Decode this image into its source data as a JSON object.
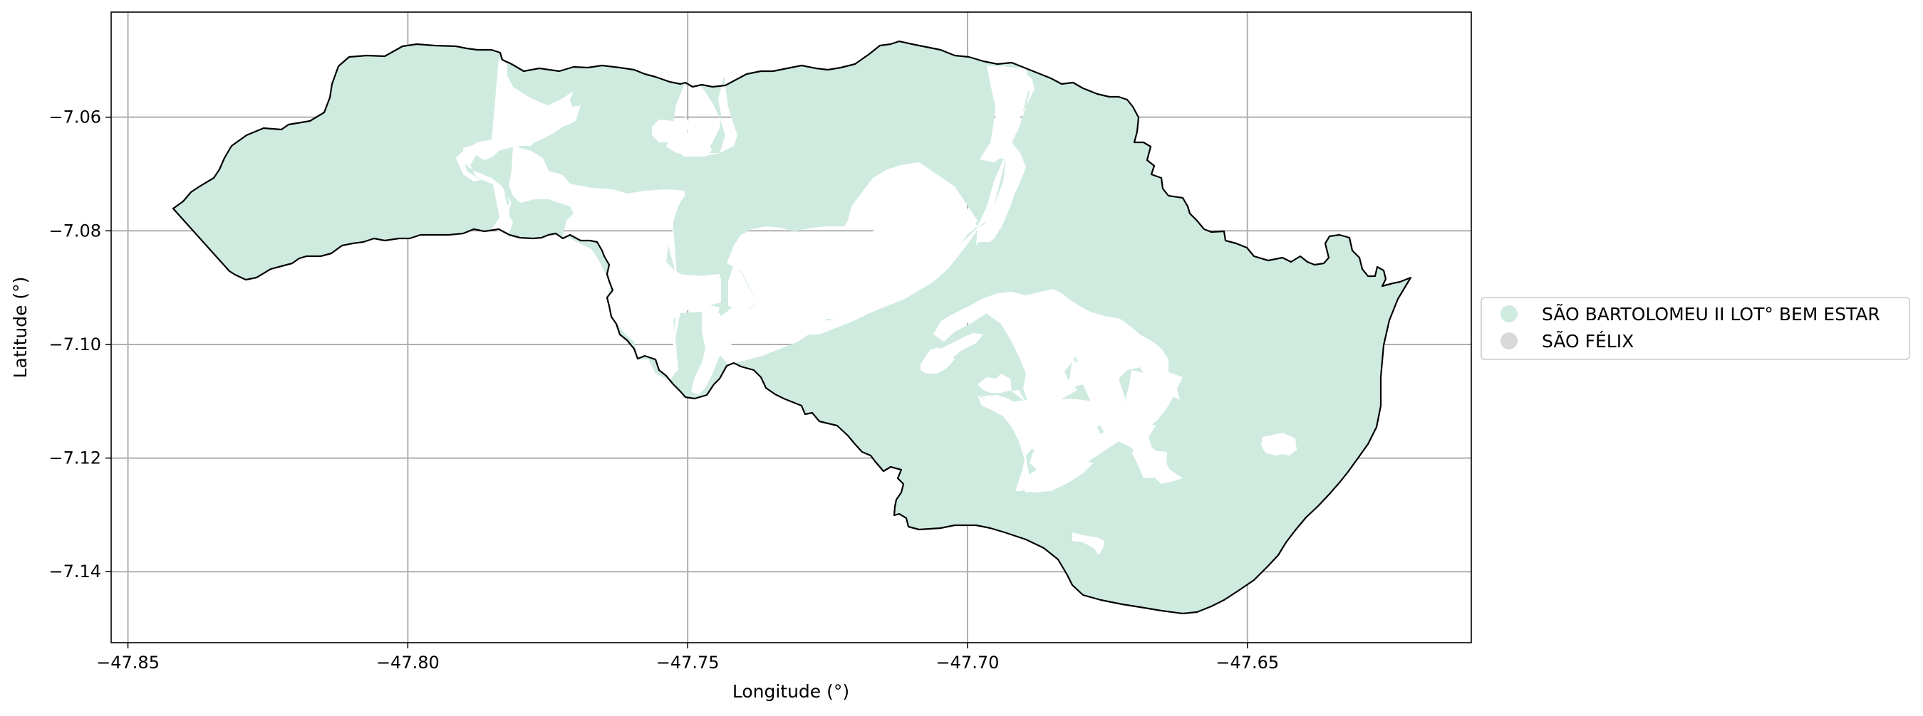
{
  "map": {
    "xlabel": "Longitude (°)",
    "ylabel": "Latitude (°)",
    "xlim": [
      -47.853,
      -47.61
    ],
    "ylim": [
      -7.1525,
      -7.0415
    ],
    "x_ticks": [
      {
        "value": -47.85,
        "label": "−47.85"
      },
      {
        "value": -47.8,
        "label": "−47.80"
      },
      {
        "value": -47.75,
        "label": "−47.75"
      },
      {
        "value": -47.7,
        "label": "−47.70"
      },
      {
        "value": -47.65,
        "label": "−47.65"
      }
    ],
    "y_ticks": [
      {
        "value": -7.06,
        "label": "−7.06"
      },
      {
        "value": -7.08,
        "label": "−7.08"
      },
      {
        "value": -7.1,
        "label": "−7.10"
      },
      {
        "value": -7.12,
        "label": "−7.12"
      },
      {
        "value": -7.14,
        "label": "−7.14"
      }
    ],
    "grid": true,
    "legend": {
      "placement": "right",
      "entries": [
        {
          "label": "SÃO BARTOLOMEU II LOT° BEM ESTAR",
          "color": "#cfebdf"
        },
        {
          "label": "SÃO FÉLIX",
          "color": "#d9d9d9"
        }
      ]
    },
    "colors": {
      "region_fill": "#cfebdf",
      "boundary": "#000000",
      "grid": "#b0b0b0"
    }
  }
}
